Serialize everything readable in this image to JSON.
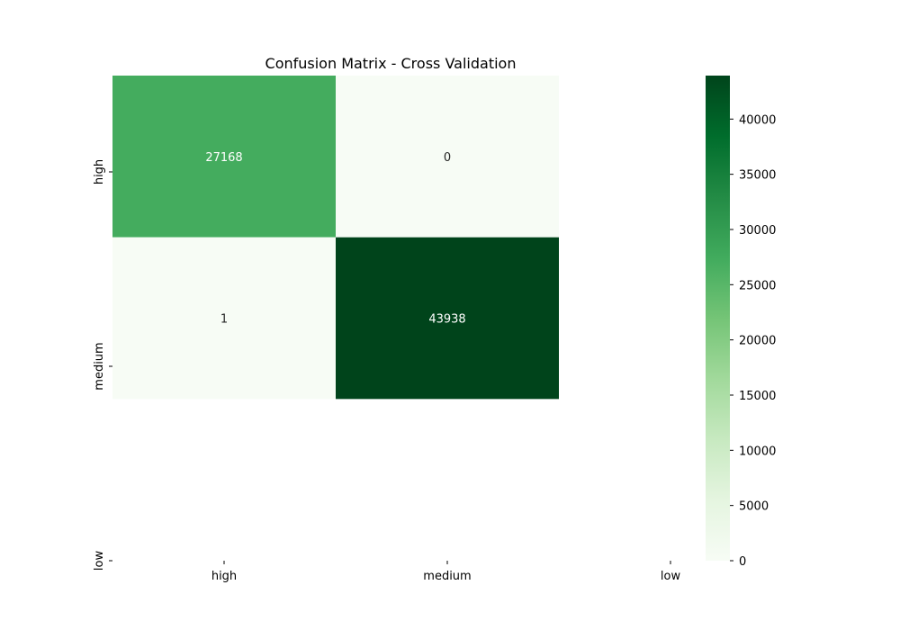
{
  "chart_data": {
    "type": "heatmap",
    "title": "Confusion Matrix - Cross Validation",
    "x_categories": [
      "high",
      "medium",
      "low"
    ],
    "y_categories": [
      "high",
      "medium",
      "low"
    ],
    "cells": [
      {
        "row": 0,
        "col": 0,
        "value": 27168,
        "label": "27168"
      },
      {
        "row": 0,
        "col": 1,
        "value": 0,
        "label": "0"
      },
      {
        "row": 1,
        "col": 0,
        "value": 1,
        "label": "1"
      },
      {
        "row": 1,
        "col": 1,
        "value": 43938,
        "label": "43938"
      }
    ],
    "colormap": "Greens",
    "colorbar": {
      "min": 0,
      "max": 43938,
      "ticks": [
        0,
        5000,
        10000,
        15000,
        20000,
        25000,
        30000,
        35000,
        40000
      ],
      "tick_labels": [
        "0",
        "5000",
        "10000",
        "15000",
        "20000",
        "25000",
        "30000",
        "35000",
        "40000"
      ]
    },
    "colors": {
      "low": "#f7fcf5",
      "high": "#00441b"
    }
  }
}
